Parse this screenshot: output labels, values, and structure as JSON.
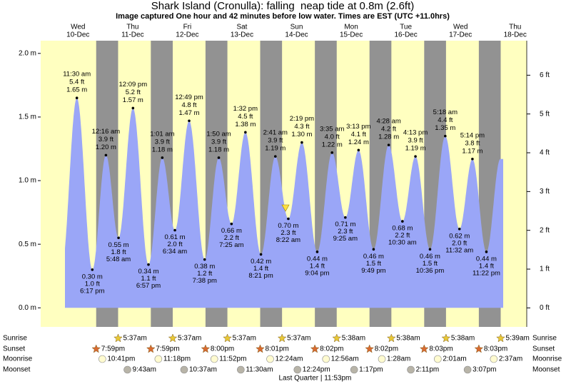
{
  "chart_data": {
    "type": "tide",
    "title": "Shark Island (Cronulla): falling  neap tide at 0.8m (2.6ft)",
    "subtitle": "Image captured One hour and 42 minutes before low water. Times are EST (UTC +11.0hrs)",
    "color": "#9aa6f7",
    "day_color": "#ffffc0",
    "night_color": "#929292",
    "day_label_color": "#e00000",
    "ylim": [
      -0.15,
      2.1
    ],
    "yticks": [
      {
        "value": 0,
        "label": "0.0 m"
      },
      {
        "value": 0.5,
        "label": "0.5 m"
      },
      {
        "value": 1,
        "label": "1.0 m"
      },
      {
        "value": 1.5,
        "label": "1.5 m"
      },
      {
        "value": 2,
        "label": "2.0 m"
      }
    ],
    "y2lim": [
      -0.49,
      6.89
    ],
    "y2ticks": [
      {
        "value": 0,
        "label": "0 ft"
      },
      {
        "value": 1,
        "label": "1 ft"
      },
      {
        "value": 2,
        "label": "2 ft"
      },
      {
        "value": 3,
        "label": "3 ft"
      },
      {
        "value": 4,
        "label": "4 ft"
      },
      {
        "value": 5,
        "label": "5 ft"
      },
      {
        "value": 6,
        "label": "6 ft"
      }
    ],
    "row_labels": [
      "Sunrise",
      "Sunset",
      "Moonrise",
      "Moonset"
    ],
    "days": [
      {
        "name": "Wed",
        "date": "10-Dec",
        "sunset": "7:59pm",
        "moonrise": "10:41pm",
        "tides": [
          {
            "time": "11:30 am",
            "values": [
              1.65,
              5.4
            ],
            "value_labels": [
              "1.65 m",
              "5.4 ft"
            ]
          },
          {
            "time": "6:17 pm",
            "values": [
              0.3,
              1.0
            ],
            "value_labels": [
              "0.30 m",
              "1.0 ft"
            ]
          }
        ]
      },
      {
        "name": "Thu",
        "date": "11-Dec",
        "sunrise": "5:37am",
        "sunset": "7:59pm",
        "moonrise": "11:18pm",
        "moonset": "9:43am",
        "tides": [
          {
            "time": "12:16 am",
            "values": [
              1.2,
              3.9
            ],
            "value_labels": [
              "1.20 m",
              "3.9 ft"
            ]
          },
          {
            "time": "5:48 am",
            "values": [
              0.55,
              1.8
            ],
            "value_labels": [
              "0.55 m",
              "1.8 ft"
            ]
          },
          {
            "time": "12:09 pm",
            "values": [
              1.57,
              5.2
            ],
            "value_labels": [
              "1.57 m",
              "5.2 ft"
            ]
          },
          {
            "time": "6:57 pm",
            "values": [
              0.34,
              1.1
            ],
            "value_labels": [
              "0.34 m",
              "1.1 ft"
            ]
          }
        ]
      },
      {
        "name": "Fri",
        "date": "12-Dec",
        "sunrise": "5:37am",
        "sunset": "8:00pm",
        "moonrise": "11:52pm",
        "moonset": "10:37am",
        "tides": [
          {
            "time": "1:01 am",
            "values": [
              1.18,
              3.9
            ],
            "value_labels": [
              "1.18 m",
              "3.9 ft"
            ]
          },
          {
            "time": "6:34 am",
            "values": [
              0.61,
              2.0
            ],
            "value_labels": [
              "0.61 m",
              "2.0 ft"
            ]
          },
          {
            "time": "12:49 pm",
            "values": [
              1.47,
              4.8
            ],
            "value_labels": [
              "1.47 m",
              "4.8 ft"
            ]
          },
          {
            "time": "7:38 pm",
            "values": [
              0.38,
              1.2
            ],
            "value_labels": [
              "0.38 m",
              "1.2 ft"
            ]
          }
        ]
      },
      {
        "name": "Sat",
        "date": "13-Dec",
        "sunrise": "5:37am",
        "sunset": "8:01pm",
        "moonset": "11:30am",
        "tides": [
          {
            "time": "1:50 am",
            "values": [
              1.18,
              3.9
            ],
            "value_labels": [
              "1.18 m",
              "3.9 ft"
            ]
          },
          {
            "time": "7:25 am",
            "values": [
              0.66,
              2.2
            ],
            "value_labels": [
              "0.66 m",
              "2.2 ft"
            ]
          },
          {
            "time": "1:32 pm",
            "values": [
              1.38,
              4.5
            ],
            "value_labels": [
              "1.38 m",
              "4.5 ft"
            ]
          },
          {
            "time": "8:21 pm",
            "values": [
              0.42,
              1.4
            ],
            "value_labels": [
              "0.42 m",
              "1.4 ft"
            ]
          }
        ]
      },
      {
        "name": "Sun",
        "date": "14-Dec",
        "sunrise": "5:37am",
        "sunset": "8:02pm",
        "moonrise": "12:24am",
        "moonset": "12:24pm",
        "moon_phase": "Last Quarter | 11:53pm",
        "tides": [
          {
            "time": "2:41 am",
            "values": [
              1.19,
              3.9
            ],
            "value_labels": [
              "1.19 m",
              "3.9 ft"
            ]
          },
          {
            "time": "8:22 am",
            "values": [
              0.7,
              2.3
            ],
            "value_labels": [
              "0.70 m",
              "2.3 ft"
            ]
          },
          {
            "time": "2:19 pm",
            "values": [
              1.3,
              4.3
            ],
            "value_labels": [
              "1.30 m",
              "4.3 ft"
            ]
          },
          {
            "time": "9:04 pm",
            "values": [
              0.44,
              1.4
            ],
            "value_labels": [
              "0.44 m",
              "1.4 ft"
            ]
          }
        ]
      },
      {
        "name": "Mon",
        "date": "15-Dec",
        "sunrise": "5:38am",
        "sunset": "8:02pm",
        "moonrise": "12:56am",
        "moonset": "1:17pm",
        "tides": [
          {
            "time": "3:35 am",
            "values": [
              1.22,
              4.0
            ],
            "value_labels": [
              "1.22 m",
              "4.0 ft"
            ]
          },
          {
            "time": "9:25 am",
            "values": [
              0.71,
              2.3
            ],
            "value_labels": [
              "0.71 m",
              "2.3 ft"
            ]
          },
          {
            "time": "3:13 pm",
            "values": [
              1.24,
              4.1
            ],
            "value_labels": [
              "1.24 m",
              "4.1 ft"
            ]
          },
          {
            "time": "9:49 pm",
            "values": [
              0.46,
              1.5
            ],
            "value_labels": [
              "0.46 m",
              "1.5 ft"
            ]
          }
        ]
      },
      {
        "name": "Tue",
        "date": "16-Dec",
        "sunrise": "5:38am",
        "sunset": "8:03pm",
        "moonrise": "1:28am",
        "moonset": "2:11pm",
        "tides": [
          {
            "time": "4:28 am",
            "values": [
              1.28,
              4.2
            ],
            "value_labels": [
              "1.28 m",
              "4.2 ft"
            ]
          },
          {
            "time": "10:30 am",
            "values": [
              0.68,
              2.2
            ],
            "value_labels": [
              "0.68 m",
              "2.2 ft"
            ]
          },
          {
            "time": "4:13 pm",
            "values": [
              1.19,
              3.9
            ],
            "value_labels": [
              "1.19 m",
              "3.9 ft"
            ]
          },
          {
            "time": "10:36 pm",
            "values": [
              0.46,
              1.5
            ],
            "value_labels": [
              "0.46 m",
              "1.5 ft"
            ]
          }
        ]
      },
      {
        "name": "Wed",
        "date": "17-Dec",
        "sunrise": "5:38am",
        "sunset": "8:03pm",
        "moonrise": "2:01am",
        "moonset": "3:07pm",
        "tides": [
          {
            "time": "5:18 am",
            "values": [
              1.35,
              4.4
            ],
            "value_labels": [
              "1.35 m",
              "4.4 ft"
            ]
          },
          {
            "time": "11:32 am",
            "values": [
              0.62,
              2.0
            ],
            "value_labels": [
              "0.62 m",
              "2.0 ft"
            ]
          },
          {
            "time": "5:14 pm",
            "values": [
              1.17,
              3.8
            ],
            "value_labels": [
              "1.17 m",
              "3.8 ft"
            ]
          },
          {
            "time": "11:22 pm",
            "values": [
              0.44,
              1.4
            ],
            "value_labels": [
              "0.44 m",
              "1.4 ft"
            ]
          }
        ]
      },
      {
        "name": "Thu",
        "date": "18-Dec",
        "sunrise": "5:39am",
        "moonrise": "2:37am",
        "tides": []
      }
    ]
  }
}
